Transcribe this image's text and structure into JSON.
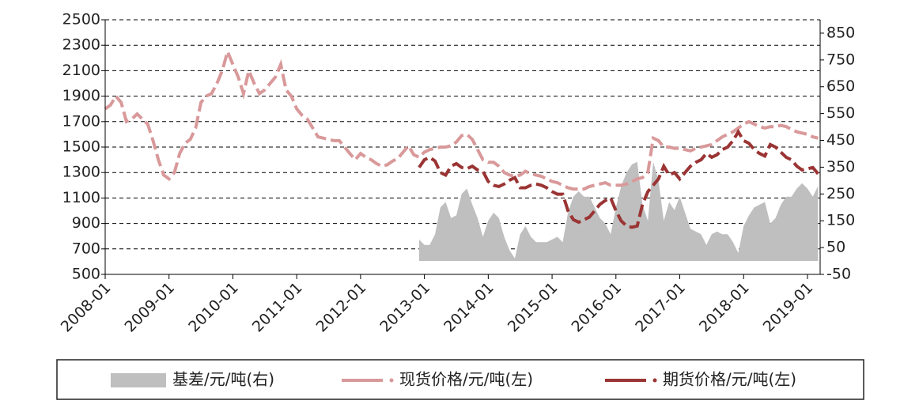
{
  "chart_data": {
    "type": "line",
    "x": [
      "2008-01",
      "2008-02",
      "2008-03",
      "2008-04",
      "2008-05",
      "2008-06",
      "2008-07",
      "2008-08",
      "2008-09",
      "2008-10",
      "2008-11",
      "2008-12",
      "2009-01",
      "2009-02",
      "2009-03",
      "2009-04",
      "2009-05",
      "2009-06",
      "2009-07",
      "2009-08",
      "2009-09",
      "2009-10",
      "2009-11",
      "2009-12",
      "2010-01",
      "2010-02",
      "2010-03",
      "2010-04",
      "2010-05",
      "2010-06",
      "2010-07",
      "2010-08",
      "2010-09",
      "2010-10",
      "2010-11",
      "2010-12",
      "2011-01",
      "2011-02",
      "2011-03",
      "2011-04",
      "2011-05",
      "2011-06",
      "2011-07",
      "2011-08",
      "2011-09",
      "2011-10",
      "2011-11",
      "2011-12",
      "2012-01",
      "2012-02",
      "2012-03",
      "2012-04",
      "2012-05",
      "2012-06",
      "2012-07",
      "2012-08",
      "2012-09",
      "2012-10",
      "2012-11",
      "2012-12",
      "2013-01",
      "2013-02",
      "2013-03",
      "2013-04",
      "2013-05",
      "2013-06",
      "2013-07",
      "2013-08",
      "2013-09",
      "2013-10",
      "2013-11",
      "2013-12",
      "2014-01",
      "2014-02",
      "2014-03",
      "2014-04",
      "2014-05",
      "2014-06",
      "2014-07",
      "2014-08",
      "2014-09",
      "2014-10",
      "2014-11",
      "2014-12",
      "2015-01",
      "2015-02",
      "2015-03",
      "2015-04",
      "2015-05",
      "2015-06",
      "2015-07",
      "2015-08",
      "2015-09",
      "2015-10",
      "2015-11",
      "2015-12",
      "2016-01",
      "2016-02",
      "2016-03",
      "2016-04",
      "2016-05",
      "2016-06",
      "2016-07",
      "2016-08",
      "2016-09",
      "2016-10",
      "2016-11",
      "2016-12",
      "2017-01",
      "2017-02",
      "2017-03",
      "2017-04",
      "2017-05",
      "2017-06",
      "2017-07",
      "2017-08",
      "2017-09",
      "2017-10",
      "2017-11",
      "2017-12",
      "2018-01",
      "2018-02",
      "2018-03",
      "2018-04",
      "2018-05",
      "2018-06",
      "2018-07",
      "2018-08",
      "2018-09",
      "2018-10",
      "2018-11",
      "2018-12",
      "2019-01",
      "2019-02",
      "2019-03"
    ],
    "xticks": [
      "2008-01",
      "2009-01",
      "2010-01",
      "2011-01",
      "2012-01",
      "2013-01",
      "2014-01",
      "2015-01",
      "2016-01",
      "2017-01",
      "2018-01",
      "2019-01"
    ],
    "series": [
      {
        "name": "基差/元/吨(右)",
        "color": "#bfbfbf",
        "kind": "area",
        "axis": "y2",
        "values": [
          null,
          null,
          null,
          null,
          null,
          null,
          null,
          null,
          null,
          null,
          null,
          null,
          null,
          null,
          null,
          null,
          null,
          null,
          null,
          null,
          null,
          null,
          null,
          null,
          null,
          null,
          null,
          null,
          null,
          null,
          null,
          null,
          null,
          null,
          null,
          null,
          null,
          null,
          null,
          null,
          null,
          null,
          null,
          null,
          null,
          null,
          null,
          null,
          null,
          null,
          null,
          null,
          null,
          null,
          null,
          null,
          null,
          null,
          null,
          80,
          60,
          60,
          100,
          200,
          220,
          160,
          170,
          250,
          270,
          210,
          160,
          90,
          150,
          180,
          160,
          90,
          40,
          10,
          100,
          130,
          90,
          70,
          70,
          70,
          80,
          90,
          70,
          180,
          240,
          260,
          240,
          240,
          200,
          160,
          140,
          100,
          200,
          280,
          330,
          360,
          370,
          210,
          150,
          370,
          300,
          150,
          220,
          190,
          240,
          180,
          120,
          110,
          100,
          60,
          100,
          110,
          100,
          100,
          70,
          30,
          130,
          170,
          200,
          210,
          220,
          140,
          160,
          210,
          240,
          240,
          270,
          290,
          270,
          240,
          280
        ]
      },
      {
        "name": "现货价格/元/吨(左)",
        "color": "#d9999a",
        "kind": "line",
        "values": [
          1800,
          1830,
          1900,
          1850,
          1700,
          1720,
          1760,
          1720,
          1680,
          1550,
          1400,
          1280,
          1250,
          1300,
          1450,
          1530,
          1560,
          1650,
          1850,
          1900,
          1920,
          2000,
          2100,
          2250,
          2150,
          2050,
          1920,
          2100,
          2000,
          1920,
          1950,
          2000,
          2050,
          2150,
          1950,
          1900,
          1800,
          1750,
          1720,
          1650,
          1580,
          1570,
          1560,
          1550,
          1550,
          1500,
          1450,
          1400,
          1450,
          1420,
          1400,
          1370,
          1350,
          1360,
          1390,
          1410,
          1460,
          1510,
          1440,
          1420,
          1460,
          1480,
          1490,
          1500,
          1500,
          1510,
          1540,
          1590,
          1600,
          1560,
          1480,
          1400,
          1380,
          1380,
          1350,
          1300,
          1280,
          1270,
          1280,
          1310,
          1290,
          1280,
          1270,
          1250,
          1230,
          1220,
          1200,
          1180,
          1170,
          1170,
          1170,
          1190,
          1200,
          1210,
          1220,
          1200,
          1200,
          1200,
          1210,
          1230,
          1250,
          1260,
          1300,
          1570,
          1550,
          1500,
          1500,
          1490,
          1490,
          1480,
          1470,
          1490,
          1500,
          1510,
          1520,
          1550,
          1580,
          1600,
          1620,
          1650,
          1680,
          1700,
          1680,
          1660,
          1650,
          1660,
          1660,
          1670,
          1660,
          1640,
          1620,
          1610,
          1600,
          1580,
          1570
        ]
      },
      {
        "name": "期货价格/元/吨(左)",
        "color": "#9b3434",
        "kind": "line",
        "values": [
          null,
          null,
          null,
          null,
          null,
          null,
          null,
          null,
          null,
          null,
          null,
          null,
          null,
          null,
          null,
          null,
          null,
          null,
          null,
          null,
          null,
          null,
          null,
          null,
          null,
          null,
          null,
          null,
          null,
          null,
          null,
          null,
          null,
          null,
          null,
          null,
          null,
          null,
          null,
          null,
          null,
          null,
          null,
          null,
          null,
          null,
          null,
          null,
          null,
          null,
          null,
          null,
          null,
          null,
          null,
          null,
          null,
          null,
          null,
          1340,
          1400,
          1420,
          1390,
          1300,
          1280,
          1350,
          1370,
          1340,
          1330,
          1350,
          1320,
          1310,
          1230,
          1200,
          1190,
          1210,
          1240,
          1260,
          1180,
          1180,
          1200,
          1210,
          1200,
          1180,
          1150,
          1130,
          1130,
          1000,
          930,
          910,
          930,
          950,
          1000,
          1050,
          1080,
          1100,
          1000,
          920,
          880,
          870,
          880,
          1050,
          1150,
          1200,
          1250,
          1350,
          1280,
          1300,
          1250,
          1300,
          1350,
          1380,
          1400,
          1450,
          1420,
          1440,
          1480,
          1500,
          1550,
          1620,
          1550,
          1530,
          1480,
          1450,
          1430,
          1520,
          1500,
          1460,
          1420,
          1400,
          1350,
          1320,
          1330,
          1340,
          1290
        ]
      }
    ],
    "ylim": [
      500,
      2500
    ],
    "yticks": [
      500,
      700,
      900,
      1100,
      1300,
      1500,
      1700,
      1900,
      2100,
      2300,
      2500
    ],
    "y2lim": [
      -50,
      900
    ],
    "y2ticks": [
      -50,
      50,
      150,
      250,
      350,
      450,
      550,
      650,
      750,
      850
    ],
    "grid": true
  }
}
